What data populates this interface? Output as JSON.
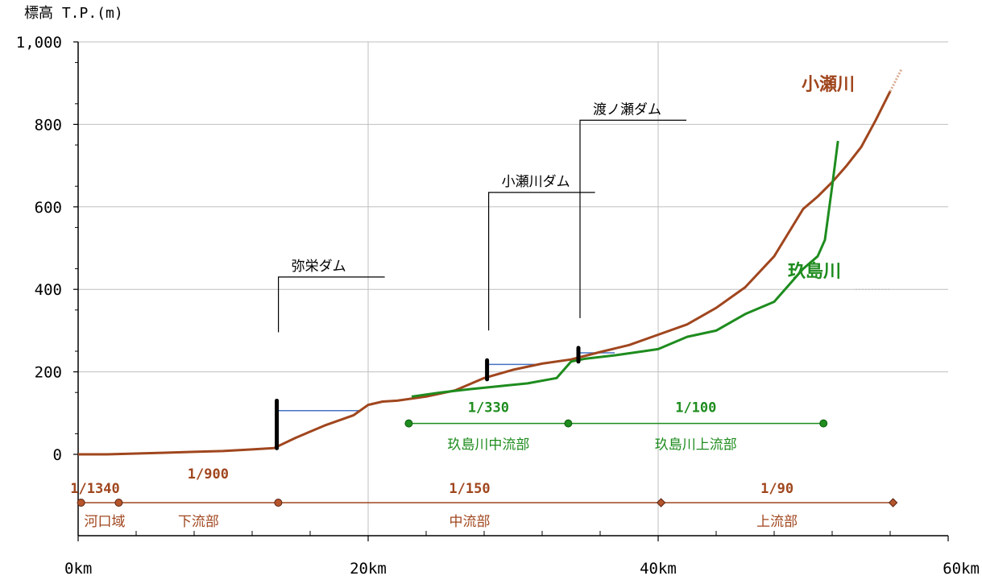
{
  "chart_data": {
    "type": "line",
    "ylabel": "標高 T.P.(m)",
    "xlim": [
      0,
      60
    ],
    "ylim": [
      0,
      1000
    ],
    "x_ticks": [
      {
        "value": 0,
        "label": "0km"
      },
      {
        "value": 20,
        "label": "20km"
      },
      {
        "value": 40,
        "label": "40km"
      },
      {
        "value": 60,
        "label": "60km"
      }
    ],
    "y_ticks": [
      {
        "value": 0,
        "label": "0"
      },
      {
        "value": 200,
        "label": "200"
      },
      {
        "value": 400,
        "label": "400"
      },
      {
        "value": 600,
        "label": "600"
      },
      {
        "value": 800,
        "label": "800"
      },
      {
        "value": 1000,
        "label": "1,000"
      }
    ],
    "grid": true,
    "series": [
      {
        "name": "小瀬川",
        "color": "#a0461e",
        "x": [
          0,
          2,
          4,
          6,
          8,
          10,
          12,
          13.5,
          15,
          17,
          19,
          20,
          21,
          22,
          24,
          26,
          28,
          30,
          32,
          34,
          36,
          38,
          40,
          42,
          44,
          46,
          48,
          50,
          51,
          52,
          53,
          54,
          55,
          56
        ],
        "y": [
          0,
          0,
          2,
          4,
          6,
          8,
          12,
          15,
          40,
          70,
          95,
          120,
          128,
          130,
          140,
          155,
          185,
          205,
          220,
          230,
          248,
          265,
          290,
          315,
          355,
          405,
          480,
          595,
          625,
          660,
          700,
          745,
          810,
          880
        ]
      },
      {
        "name": "玖島川",
        "color": "#1e8c1e",
        "x": [
          23,
          25,
          27,
          29,
          31,
          33,
          34,
          35,
          37,
          39,
          40,
          42,
          44,
          46,
          48,
          49,
          50,
          51,
          51.5,
          52,
          52.4
        ],
        "y": [
          140,
          150,
          158,
          165,
          172,
          185,
          225,
          232,
          240,
          250,
          255,
          285,
          300,
          340,
          370,
          410,
          450,
          480,
          520,
          650,
          760
        ]
      }
    ],
    "dams": [
      {
        "name": "弥栄ダム",
        "x": 13.7,
        "base": 15,
        "top": 130,
        "pool_to": 19.5,
        "pool": 106
      },
      {
        "name": "小瀬川ダム",
        "x": 28.2,
        "base": 182,
        "top": 228,
        "pool_to": 31.5,
        "pool": 218
      },
      {
        "name": "渡ノ瀬ダム",
        "x": 34.5,
        "base": 225,
        "top": 258,
        "pool_to": 37,
        "pool": 246
      }
    ],
    "kojima_segments": {
      "y": 75,
      "points": [
        22.8,
        33.8,
        51.4
      ],
      "gradients": [
        "1/330",
        "1/100"
      ],
      "labels": [
        "玖島川中流部",
        "玖島川上流部"
      ]
    },
    "kose_segments": {
      "y": -115,
      "points": [
        0.2,
        2.8,
        13.8,
        40.2,
        56.2
      ],
      "gradients_top": [
        "1/1340",
        "1/150",
        "1/90"
      ],
      "gradient_above": "1/900",
      "labels": [
        "河口域",
        "下流部",
        "中流部",
        "上流部"
      ]
    },
    "colors": {
      "kose": "#a0461e",
      "kojima": "#1e8c1e",
      "pool": "#4472c4",
      "dam": "#000000",
      "grid": "#bfbfbf"
    }
  }
}
